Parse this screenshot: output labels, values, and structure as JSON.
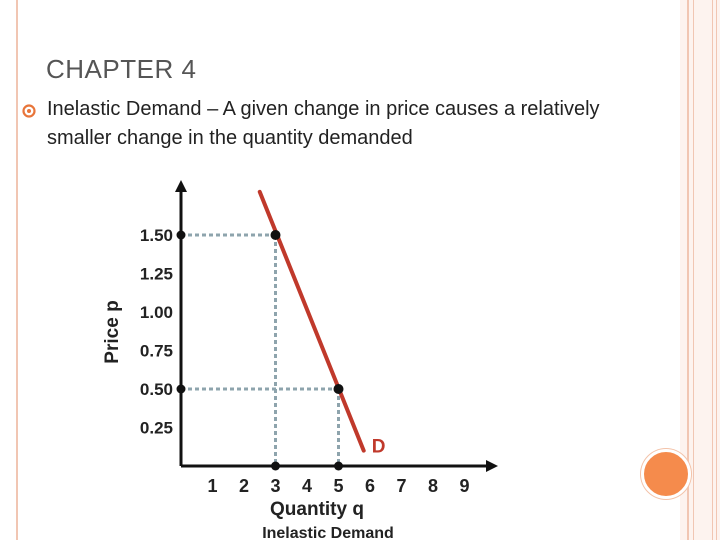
{
  "slide": {
    "title": "CHAPTER 4",
    "bullet": "Inelastic Demand – A given change in price causes a relatively smaller change in the quantity demanded"
  },
  "colors": {
    "frame": "#f1c6b3",
    "accent_circle": "#f58b4c",
    "demand_line": "#c0392b",
    "guide_lines": "#8ea4ad",
    "bullet_icon": "#e8753a"
  },
  "chart_data": {
    "type": "line",
    "xlabel": "Quantity q",
    "ylabel": "Price p",
    "caption": "Inelastic Demand",
    "x_ticks": [
      "1",
      "2",
      "3",
      "4",
      "5",
      "6",
      "7",
      "8",
      "9"
    ],
    "y_ticks": [
      "0.25",
      "0.50",
      "0.75",
      "1.00",
      "1.25",
      "1.50"
    ],
    "xlim": [
      0,
      10
    ],
    "ylim": [
      0,
      1.8
    ],
    "series": [
      {
        "name": "D",
        "x": [
          2.5,
          5.8
        ],
        "y": [
          1.78,
          0.1
        ]
      }
    ],
    "highlight_points": [
      {
        "x": 3,
        "y": 1.5
      },
      {
        "x": 5,
        "y": 0.5
      }
    ],
    "grid": false
  }
}
